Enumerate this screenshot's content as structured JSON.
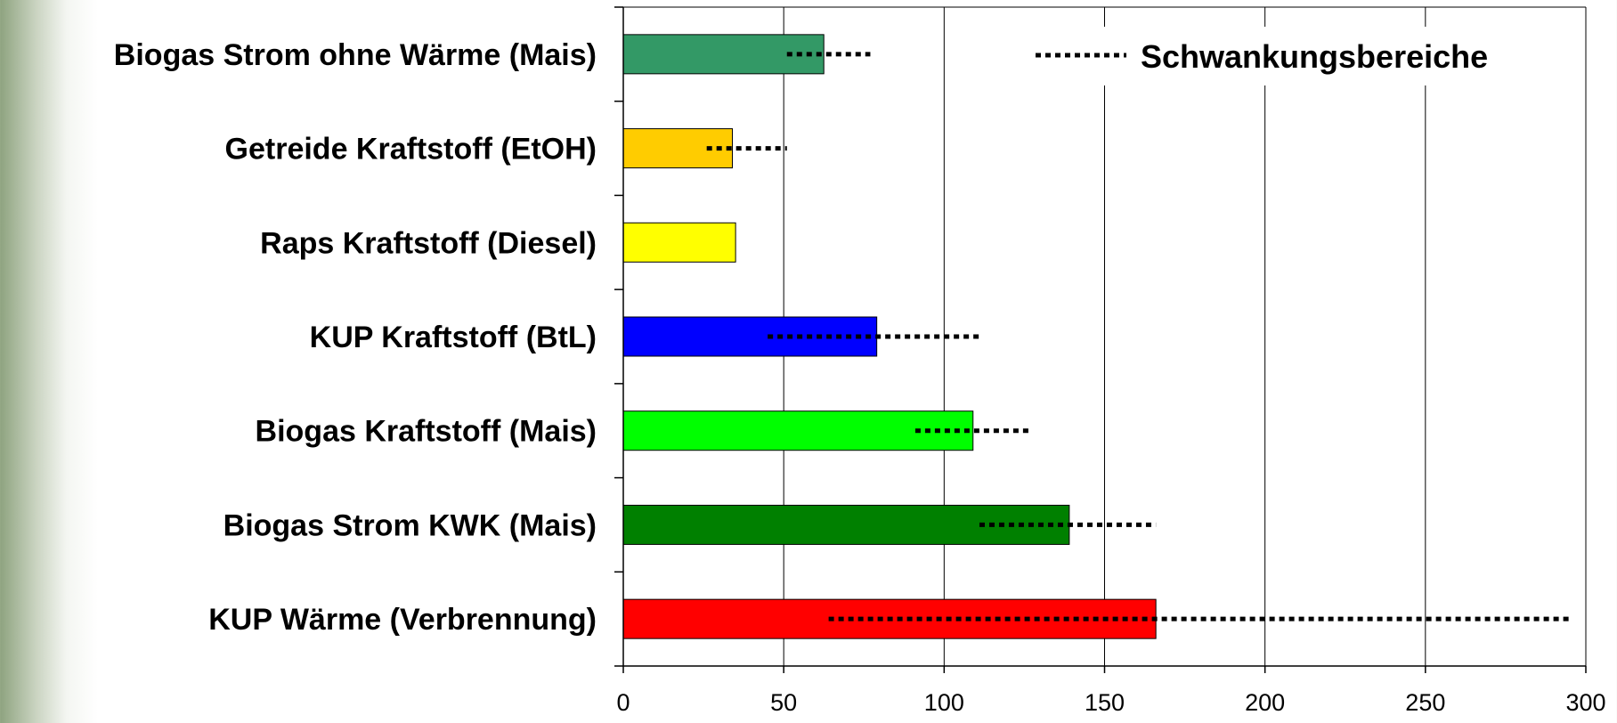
{
  "chart_data": {
    "type": "bar",
    "orientation": "horizontal",
    "categories": [
      "Biogas Strom ohne Wärme (Mais)",
      "Getreide Kraftstoff (EtOH)",
      "Raps Kraftstoff (Diesel)",
      "KUP Kraftstoff (BtL)",
      "Biogas Kraftstoff (Mais)",
      "Biogas Strom KWK (Mais)",
      "KUP Wärme (Verbrennung)"
    ],
    "values": [
      62.5,
      34,
      35,
      79,
      109,
      139,
      166
    ],
    "ranges": [
      [
        51,
        77
      ],
      [
        26,
        51
      ],
      null,
      [
        45,
        111
      ],
      [
        91,
        127
      ],
      [
        111,
        166
      ],
      [
        64,
        296
      ]
    ],
    "colors": [
      "#339966",
      "#ffcc00",
      "#ffff00",
      "#0000ff",
      "#00ff00",
      "#008000",
      "#ff0000"
    ],
    "xlim": [
      0,
      300
    ],
    "xticks": [
      "0",
      "50",
      "100",
      "150",
      "200",
      "250",
      "300"
    ],
    "grid": "vertical",
    "legend": {
      "label": "Schwankungsbereiche",
      "placement": "top-right",
      "marker": "dotted-line"
    }
  }
}
